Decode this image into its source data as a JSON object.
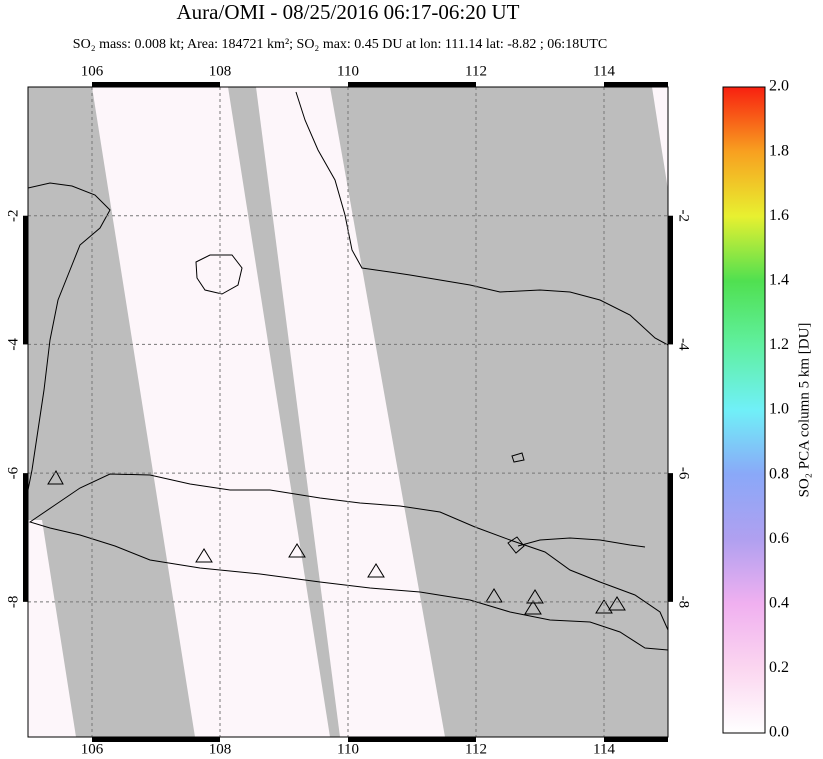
{
  "chart_data": {
    "type": "map",
    "title": "Aura/OMI - 08/25/2016 06:17-06:20 UT",
    "subtitle": "SO₂ mass: 0.008 kt; Area: 184721 km²; SO₂ max: 0.45 DU at lon: 111.14 lat: -8.82 ; 06:18UTC",
    "xlim": [
      105,
      115
    ],
    "xticks": [
      106,
      108,
      110,
      112,
      114
    ],
    "ylim": [
      -10.1,
      0
    ],
    "yticks": [
      -2,
      -4,
      -6,
      -8
    ],
    "colorbar": {
      "label": "SO₂ PCA column 5 km [DU]",
      "lim": [
        0,
        2
      ],
      "ticks": [
        {
          "value": 0,
          "label": "0.0"
        },
        0.2,
        0.4,
        0.6,
        0.8,
        {
          "value": 1,
          "label": "1.0"
        },
        1.2,
        1.4,
        1.6,
        1.8,
        {
          "value": 2,
          "label": "2.0"
        }
      ]
    }
  }
}
